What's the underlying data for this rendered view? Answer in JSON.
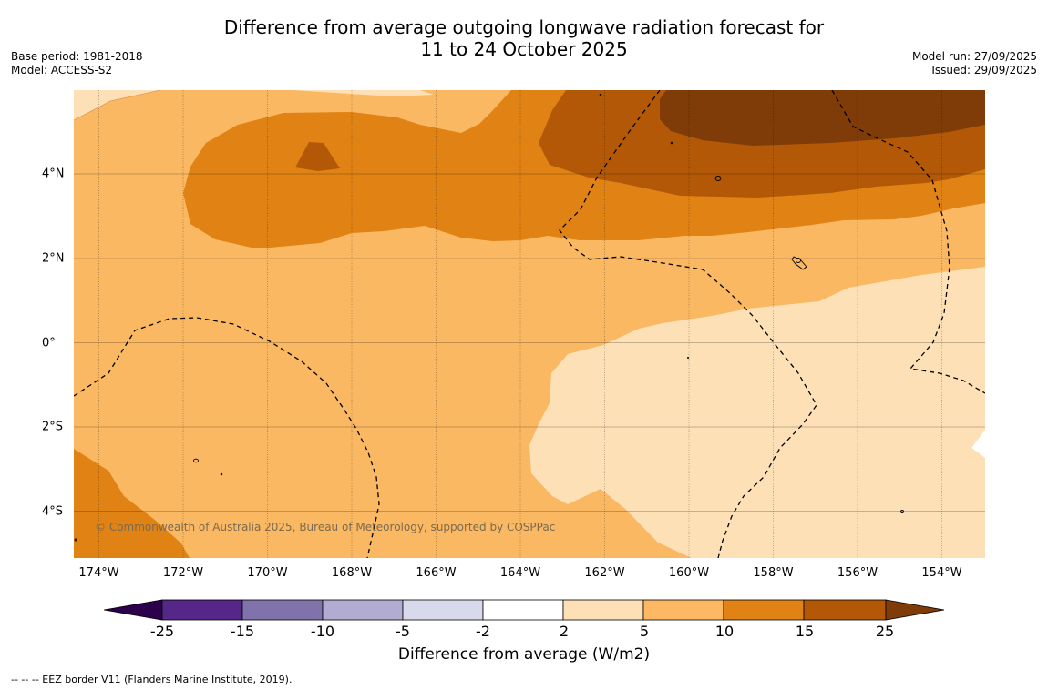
{
  "header": {
    "title_line1": "Difference from average outgoing longwave radiation forecast for",
    "title_line2": "11 to 24 October 2025",
    "base_period": "Base period: 1981-2018",
    "model": "Model: ACCESS-S2",
    "model_run": "Model run: 27/09/2025",
    "issued": "Issued: 29/09/2025"
  },
  "map": {
    "lon_labels": [
      "174°W",
      "172°W",
      "170°W",
      "168°W",
      "166°W",
      "164°W",
      "162°W",
      "160°W",
      "158°W",
      "156°W",
      "154°W"
    ],
    "lat_labels": [
      "4°N",
      "2°N",
      "0°",
      "2°S",
      "4°S"
    ],
    "copyright": "© Commonwealth of Australia 2025, Bureau of Meteorology, supported by COSPPac",
    "colors": {
      "c2_5": "#fde0b6",
      "c5_10": "#fbb862",
      "c10_15": "#e08214",
      "c15_25": "#b35806",
      "c25_plus": "#7f3b08"
    }
  },
  "colorbar": {
    "title": "Difference from average (W/m2)",
    "ticks": [
      "-25",
      "-15",
      "-10",
      "-5",
      "-2",
      "2",
      "5",
      "10",
      "15",
      "25"
    ],
    "colors": [
      "#2d004b",
      "#542788",
      "#8073ac",
      "#b2abd2",
      "#d8daeb",
      "#ffffff",
      "#fee0b6",
      "#fdb863",
      "#e08214",
      "#b35806",
      "#7f3b08"
    ]
  },
  "footnote": "--  --  -- EEZ border V11 (Flanders Marine Institute, 2019)."
}
